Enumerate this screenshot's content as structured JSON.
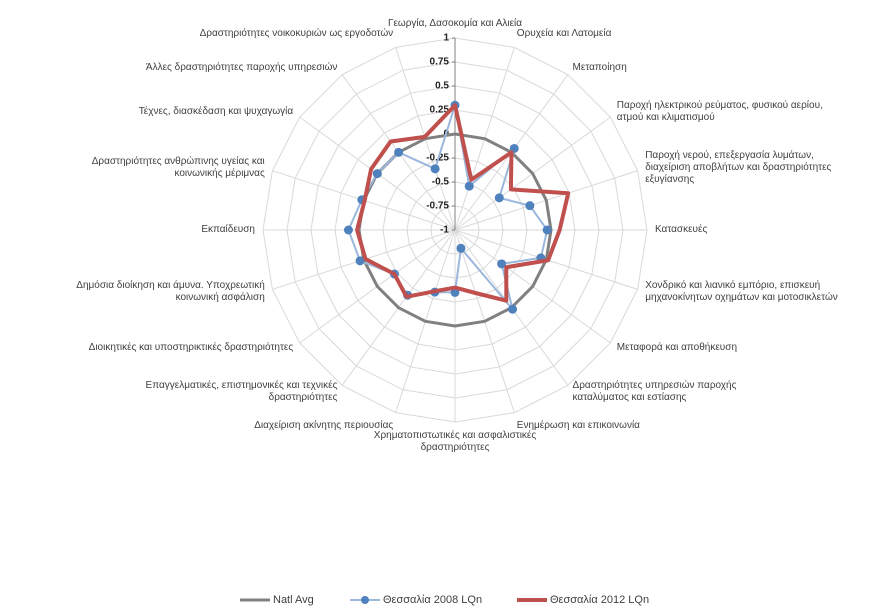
{
  "chart_data": {
    "type": "radar",
    "categories": [
      "Γεωργία, Δασοκομία και Αλιεία",
      "Ορυχεία και Λατομεία",
      "Μεταποίηση",
      "Παροχή ηλεκτρικού ρεύματος, φυσικού αερίου, ατμού και κλιματισμού",
      "Παροχή νερού, επεξεργασία λυμάτων, διαχείριση αποβλήτων και δραστηριότητες εξυγίανσης",
      "Κατασκευές",
      "Χονδρικό και λιανικό εμπόριο, επισκευή μηχανοκίνητων οχημάτων και μοτοσικλετών",
      "Μεταφορά και αποθήκευση",
      "Δραστηριότητες υπηρεσιών παροχής καταλύματος και εστίασης",
      "Ενημέρωση και επικοινωνία",
      "Χρηματοπιστωτικές και ασφαλιστικές δραστηριότητες",
      "Διαχείριση ακίνητης περιουσίας",
      "Επαγγελματικές, επιστημονικές και τεχνικές δραστηριότητες",
      "Διοικητικές και υποστηρικτικές δραστηριότητες",
      "Δημόσια διοίκηση και άμυνα. Υποχρεωτική κοινωνική ασφάλιση",
      "Εκπαίδευση",
      "Δραστηριότητες ανθρώπινης υγείας και κοινωνικής μέριμνας",
      "Τέχνες, διασκέδαση και ψυχαγωγία",
      "Άλλες δραστηριότητες παροχής υπηρεσιών",
      "Δραστηριότητες νοικοκυριών ως εργοδοτών"
    ],
    "series": [
      {
        "name": "Natl Avg",
        "color": "#808080",
        "values": [
          0,
          0,
          0,
          0,
          0,
          0,
          0,
          0,
          0,
          0,
          0,
          0,
          0,
          0,
          0,
          0,
          0,
          0,
          0,
          0
        ]
      },
      {
        "name": "Θεσσαλία 2008 LQn",
        "color": "#4f81bd",
        "values": [
          0.3,
          -0.52,
          0.05,
          -0.43,
          -0.18,
          -0.04,
          -0.06,
          -0.4,
          0.02,
          -0.8,
          -0.35,
          -0.32,
          -0.16,
          -0.22,
          0.04,
          0.11,
          0.02,
          0,
          0,
          -0.33
        ]
      },
      {
        "name": "Θεσσαλία 2012  LQn",
        "color": "#c0504d",
        "values": [
          0.3,
          -0.45,
          0,
          -0.28,
          0.24,
          0.09,
          0.02,
          -0.34,
          -0.09,
          -0.31,
          -0.4,
          -0.33,
          -0.14,
          -0.22,
          -0.02,
          0.02,
          -0.01,
          0.08,
          0.14,
          0.02
        ]
      }
    ],
    "ylim": [
      -1,
      1
    ],
    "yticks": [
      -1,
      -0.75,
      -0.5,
      -0.25,
      0,
      0.25,
      0.5,
      0.75,
      1
    ],
    "grid": true,
    "legend": "bottom"
  }
}
